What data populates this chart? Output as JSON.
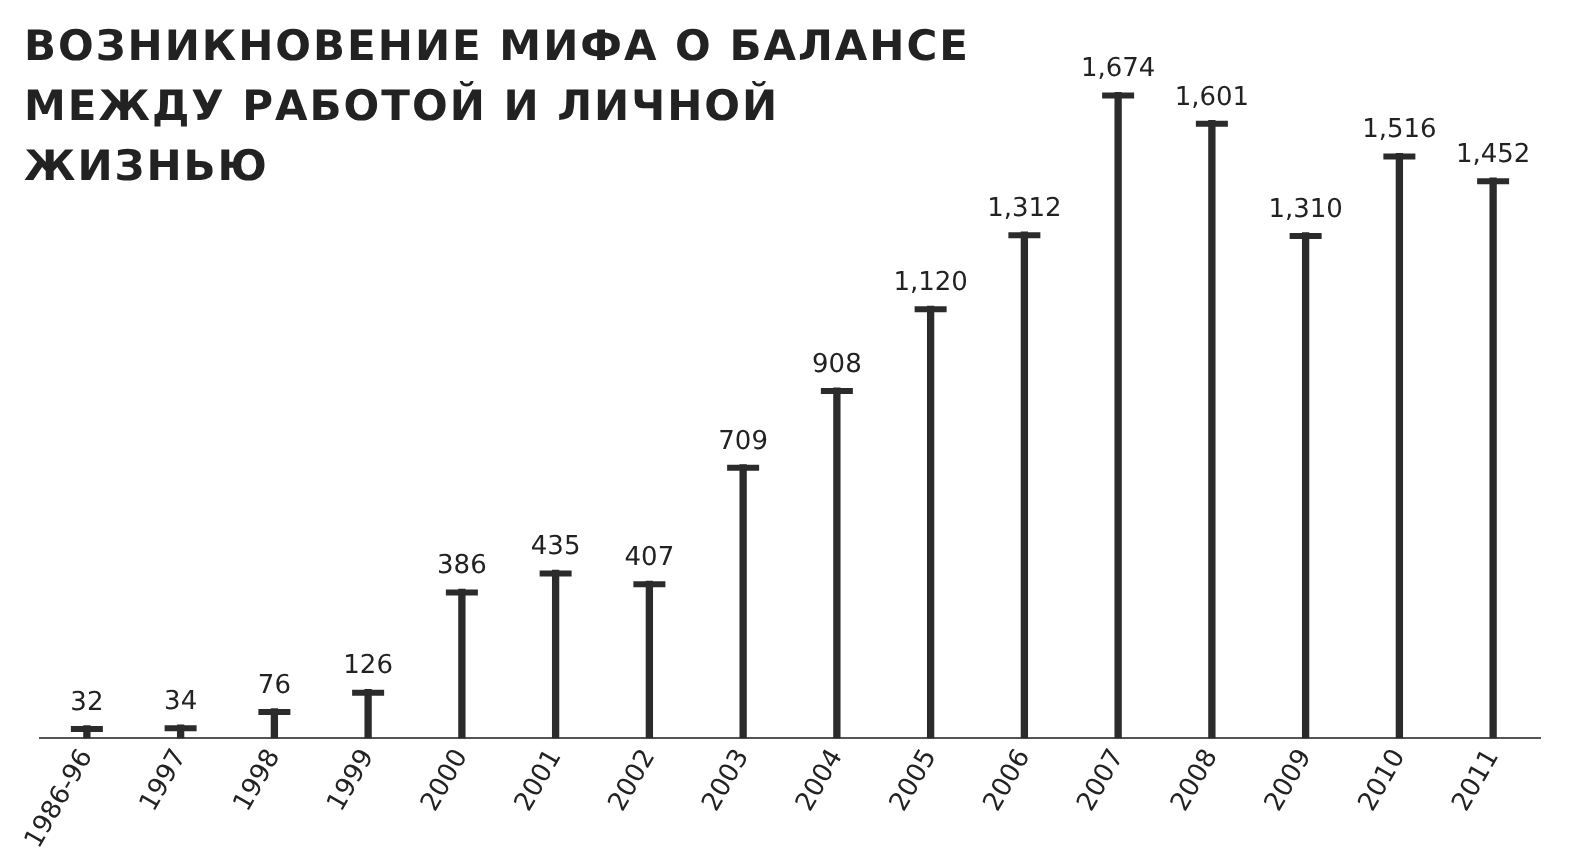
{
  "chart_data": {
    "type": "bar",
    "title": "ВОЗНИКНОВЕНИЕ МИФА О БАЛАНСЕ МЕЖДУ РАБОТОЙ И ЛИЧНОЙ ЖИЗНЬЮ",
    "categories": [
      "1986-96",
      "1997",
      "1998",
      "1999",
      "2000",
      "2001",
      "2002",
      "2003",
      "2004",
      "2005",
      "2006",
      "2007",
      "2008",
      "2009",
      "2010",
      "2011"
    ],
    "values": [
      32,
      34,
      76,
      126,
      386,
      435,
      407,
      709,
      908,
      1120,
      1312,
      1674,
      1601,
      1310,
      1516,
      1452
    ],
    "value_labels": [
      "32",
      "34",
      "76",
      "126",
      "386",
      "435",
      "407",
      "709",
      "908",
      "1,120",
      "1,312",
      "1,674",
      "1,601",
      "1,310",
      "1,516",
      "1,452"
    ],
    "color": "#2b2b2b",
    "tick_labels": "x",
    "grid": false,
    "legend": false
  }
}
